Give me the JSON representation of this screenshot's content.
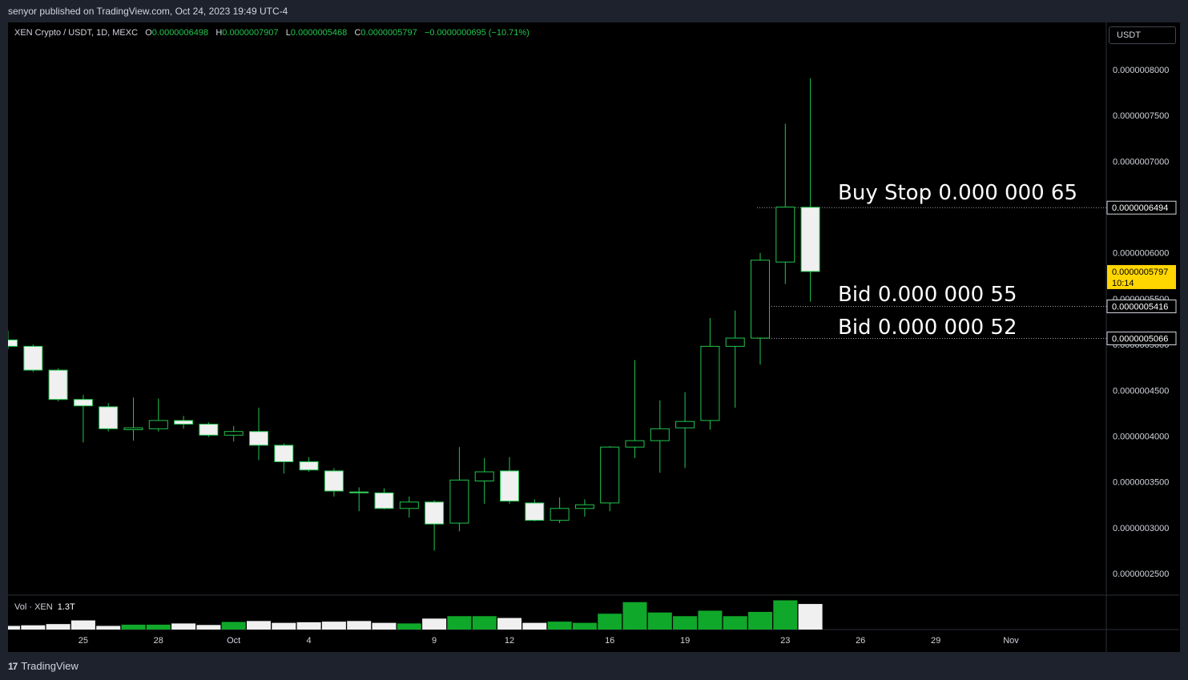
{
  "header": {
    "published": "senyor published on TradingView.com, Oct 24, 2023 19:49 UTC-4"
  },
  "legend": {
    "symbol": "XEN Crypto / USDT, 1D, MEXC",
    "o_label": "O",
    "o_value": "0.0000006498",
    "h_label": "H",
    "h_value": "0.0000007907",
    "l_label": "L",
    "l_value": "0.0000005468",
    "c_label": "C",
    "c_value": "0.0000005797",
    "change": "−0.0000000695 (−10.71%)"
  },
  "currency": "USDT",
  "volume_legend": {
    "label": "Vol · XEN",
    "value": "1.3T"
  },
  "annotations": {
    "buy_stop": "Buy Stop 0.000 000 65",
    "bid_1": "Bid 0.000 000 55",
    "bid_2": "Bid 0.000 000 52"
  },
  "footer": {
    "brand": "TradingView"
  },
  "colors": {
    "up": "#22c54e",
    "down_fill": "#f0f0f0",
    "bg": "#000000",
    "panel": "#1e222d",
    "last_price": "#ffd600"
  },
  "chart_data": {
    "type": "candlestick",
    "y_scale_multiplier": 1e-10,
    "ylim": [
      2200,
      8400
    ],
    "y_ticks": [
      {
        "v": 8000,
        "label": "0.0000008000"
      },
      {
        "v": 7500,
        "label": "0.0000007500"
      },
      {
        "v": 7000,
        "label": "0.0000007000"
      },
      {
        "v": 6000,
        "label": "0.0000006000"
      },
      {
        "v": 5500,
        "label": "0.0000005500"
      },
      {
        "v": 5000,
        "label": "0.0000005000"
      },
      {
        "v": 4500,
        "label": "0.0000004500"
      },
      {
        "v": 4000,
        "label": "0.0000004000"
      },
      {
        "v": 3500,
        "label": "0.0000003500"
      },
      {
        "v": 3000,
        "label": "0.0000003000"
      },
      {
        "v": 2500,
        "label": "0.0000002500"
      }
    ],
    "x_ticks": [
      {
        "i": 3,
        "label": "25"
      },
      {
        "i": 6,
        "label": "28"
      },
      {
        "i": 9,
        "label": "Oct"
      },
      {
        "i": 12,
        "label": "4"
      },
      {
        "i": 17,
        "label": "9"
      },
      {
        "i": 20,
        "label": "12"
      },
      {
        "i": 24,
        "label": "16"
      },
      {
        "i": 27,
        "label": "19"
      },
      {
        "i": 31,
        "label": "23"
      },
      {
        "i": 34,
        "label": "26"
      },
      {
        "i": 37,
        "label": "29"
      },
      {
        "i": 40,
        "label": "Nov"
      }
    ],
    "price_lines": [
      {
        "v": 6494,
        "label": "0.0000006494"
      },
      {
        "v": 5416,
        "label": "0.0000005416"
      },
      {
        "v": 5066,
        "label": "0.0000005066"
      }
    ],
    "last_price": {
      "v": 5797,
      "label": "0.0000005797",
      "countdown": "10:14"
    },
    "candles": [
      {
        "o": 5050,
        "h": 5150,
        "l": 4950,
        "c": 4980
      },
      {
        "o": 4980,
        "h": 5000,
        "l": 4700,
        "c": 4720
      },
      {
        "o": 4720,
        "h": 4740,
        "l": 4380,
        "c": 4400
      },
      {
        "o": 4400,
        "h": 4450,
        "l": 3930,
        "c": 4330
      },
      {
        "o": 4320,
        "h": 4360,
        "l": 4050,
        "c": 4080
      },
      {
        "o": 4070,
        "h": 4420,
        "l": 3950,
        "c": 4090
      },
      {
        "o": 4080,
        "h": 4410,
        "l": 4050,
        "c": 4170
      },
      {
        "o": 4170,
        "h": 4220,
        "l": 4080,
        "c": 4130
      },
      {
        "o": 4130,
        "h": 4150,
        "l": 3990,
        "c": 4010
      },
      {
        "o": 4010,
        "h": 4110,
        "l": 3940,
        "c": 4050
      },
      {
        "o": 4050,
        "h": 4310,
        "l": 3740,
        "c": 3900
      },
      {
        "o": 3900,
        "h": 3920,
        "l": 3590,
        "c": 3720
      },
      {
        "o": 3720,
        "h": 3770,
        "l": 3610,
        "c": 3630
      },
      {
        "o": 3620,
        "h": 3650,
        "l": 3340,
        "c": 3400
      },
      {
        "o": 3390,
        "h": 3440,
        "l": 3180,
        "c": 3380
      },
      {
        "o": 3380,
        "h": 3430,
        "l": 3200,
        "c": 3210
      },
      {
        "o": 3210,
        "h": 3340,
        "l": 3110,
        "c": 3280
      },
      {
        "o": 3280,
        "h": 3300,
        "l": 2750,
        "c": 3040
      },
      {
        "o": 3050,
        "h": 3880,
        "l": 2960,
        "c": 3520
      },
      {
        "o": 3510,
        "h": 3760,
        "l": 3260,
        "c": 3610
      },
      {
        "o": 3620,
        "h": 3770,
        "l": 3260,
        "c": 3290
      },
      {
        "o": 3270,
        "h": 3310,
        "l": 3070,
        "c": 3080
      },
      {
        "o": 3080,
        "h": 3330,
        "l": 3050,
        "c": 3210
      },
      {
        "o": 3210,
        "h": 3310,
        "l": 3120,
        "c": 3250
      },
      {
        "o": 3270,
        "h": 3890,
        "l": 3180,
        "c": 3880
      },
      {
        "o": 3880,
        "h": 4830,
        "l": 3760,
        "c": 3950
      },
      {
        "o": 3950,
        "h": 4390,
        "l": 3600,
        "c": 4080
      },
      {
        "o": 4090,
        "h": 4480,
        "l": 3650,
        "c": 4160
      },
      {
        "o": 4170,
        "h": 5290,
        "l": 4070,
        "c": 4980
      },
      {
        "o": 4980,
        "h": 5370,
        "l": 4310,
        "c": 5070
      },
      {
        "o": 5070,
        "h": 6000,
        "l": 4780,
        "c": 5920
      },
      {
        "o": 5900,
        "h": 7410,
        "l": 5660,
        "c": 6500
      },
      {
        "o": 6498,
        "h": 7907,
        "l": 5468,
        "c": 5797
      }
    ],
    "volume": [
      {
        "v": 0.12,
        "up": false
      },
      {
        "v": 0.14,
        "up": false
      },
      {
        "v": 0.18,
        "up": false
      },
      {
        "v": 0.3,
        "up": false
      },
      {
        "v": 0.12,
        "up": false
      },
      {
        "v": 0.16,
        "up": true
      },
      {
        "v": 0.16,
        "up": true
      },
      {
        "v": 0.2,
        "up": false
      },
      {
        "v": 0.15,
        "up": false
      },
      {
        "v": 0.25,
        "up": true
      },
      {
        "v": 0.28,
        "up": false
      },
      {
        "v": 0.22,
        "up": false
      },
      {
        "v": 0.24,
        "up": false
      },
      {
        "v": 0.26,
        "up": false
      },
      {
        "v": 0.28,
        "up": false
      },
      {
        "v": 0.22,
        "up": false
      },
      {
        "v": 0.2,
        "up": true
      },
      {
        "v": 0.36,
        "up": false
      },
      {
        "v": 0.44,
        "up": true
      },
      {
        "v": 0.44,
        "up": true
      },
      {
        "v": 0.38,
        "up": false
      },
      {
        "v": 0.22,
        "up": false
      },
      {
        "v": 0.26,
        "up": true
      },
      {
        "v": 0.22,
        "up": true
      },
      {
        "v": 0.52,
        "up": true
      },
      {
        "v": 0.9,
        "up": true
      },
      {
        "v": 0.56,
        "up": true
      },
      {
        "v": 0.44,
        "up": true
      },
      {
        "v": 0.62,
        "up": true
      },
      {
        "v": 0.44,
        "up": true
      },
      {
        "v": 0.58,
        "up": true
      },
      {
        "v": 0.96,
        "up": true
      },
      {
        "v": 0.84,
        "up": false
      }
    ]
  }
}
